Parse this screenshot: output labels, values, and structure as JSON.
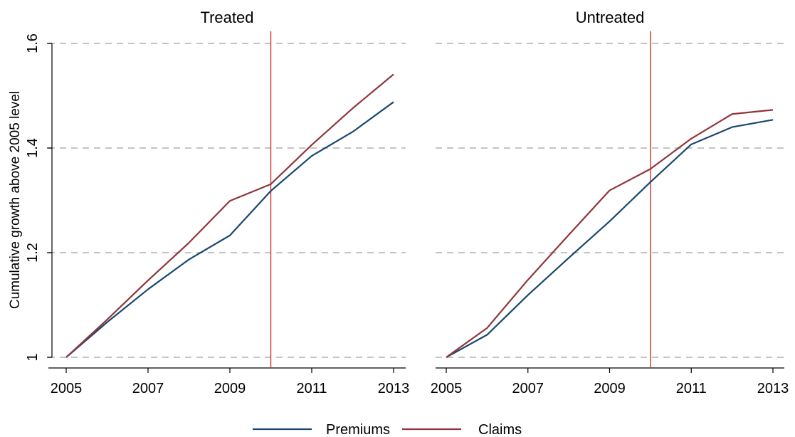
{
  "ylabel": "Cumulative growth above 2005 level",
  "legend": {
    "position": "bottom-center",
    "entries": [
      {
        "name": "Premiums",
        "color": "#1a476f"
      },
      {
        "name": "Claims",
        "color": "#90353b"
      }
    ]
  },
  "chart_data": [
    {
      "type": "line",
      "title": "Treated",
      "xlabel": "",
      "ylabel": "Cumulative growth above 2005 level",
      "x": [
        2005,
        2006,
        2007,
        2008,
        2009,
        2010,
        2011,
        2012,
        2013
      ],
      "x_ticks": [
        "2005",
        "2007",
        "2009",
        "2011",
        "2013"
      ],
      "y_ticks": [
        "1",
        "1.2",
        "1.4",
        "1.6"
      ],
      "xlim": [
        2005,
        2013
      ],
      "ylim": [
        1.0,
        1.6
      ],
      "grid": "horizontal dashed",
      "vline": {
        "x": 2010,
        "color": "#d03030"
      },
      "series": [
        {
          "name": "Premiums",
          "color": "#1a476f",
          "values": [
            1.0,
            1.067,
            1.13,
            1.187,
            1.233,
            1.318,
            1.385,
            1.431,
            1.488
          ]
        },
        {
          "name": "Claims",
          "color": "#90353b",
          "values": [
            1.0,
            1.072,
            1.147,
            1.219,
            1.299,
            1.331,
            1.406,
            1.476,
            1.541
          ]
        }
      ]
    },
    {
      "type": "line",
      "title": "Untreated",
      "xlabel": "",
      "ylabel": "",
      "x": [
        2005,
        2006,
        2007,
        2008,
        2009,
        2010,
        2011,
        2012,
        2013
      ],
      "x_ticks": [
        "2005",
        "2007",
        "2009",
        "2011",
        "2013"
      ],
      "y_ticks": [],
      "xlim": [
        2005,
        2013
      ],
      "ylim": [
        1.0,
        1.6
      ],
      "grid": "horizontal dashed",
      "vline": {
        "x": 2010,
        "color": "#d03030"
      },
      "series": [
        {
          "name": "Premiums",
          "color": "#1a476f",
          "values": [
            1.0,
            1.043,
            1.119,
            1.19,
            1.26,
            1.335,
            1.407,
            1.44,
            1.454
          ]
        },
        {
          "name": "Claims",
          "color": "#90353b",
          "values": [
            1.0,
            1.056,
            1.148,
            1.234,
            1.319,
            1.36,
            1.418,
            1.465,
            1.473
          ]
        }
      ]
    }
  ]
}
